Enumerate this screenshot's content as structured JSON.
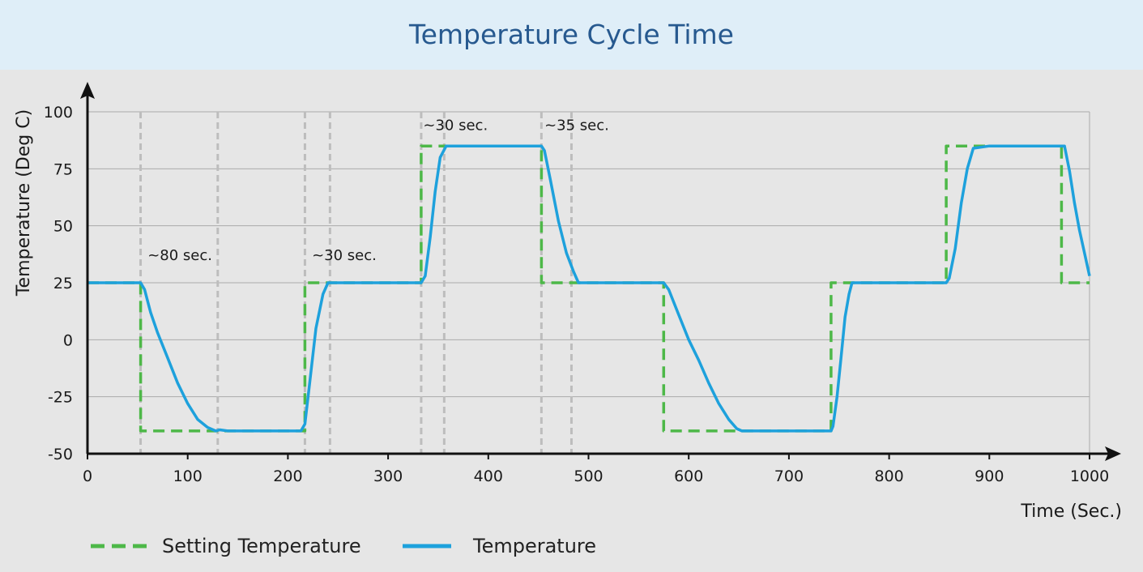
{
  "title": "Temperature Cycle Time",
  "chart_data": {
    "type": "line",
    "xlabel": "Time (Sec.)",
    "ylabel": "Temperature (Deg C)",
    "xlim": [
      0,
      1000
    ],
    "ylim": [
      -50,
      100
    ],
    "xticks": [
      0,
      100,
      200,
      300,
      400,
      500,
      600,
      700,
      800,
      900,
      1000
    ],
    "yticks": [
      -50,
      -25,
      0,
      25,
      50,
      75,
      100
    ],
    "grid": "horizontal",
    "legend_position": "bottom-left",
    "series": [
      {
        "name": "Setting Temperature",
        "style": "dashed",
        "color": "#4db848",
        "x": [
          0,
          53,
          53,
          217,
          217,
          333,
          333,
          453,
          453,
          575,
          575,
          742,
          742,
          857,
          857,
          972,
          972,
          1000
        ],
        "y": [
          25,
          25,
          -40,
          -40,
          25,
          25,
          85,
          85,
          25,
          25,
          -40,
          -40,
          25,
          25,
          85,
          85,
          25,
          25
        ]
      },
      {
        "name": "Temperature",
        "style": "solid",
        "color": "#1ea1dc",
        "x": [
          0,
          53,
          57,
          63,
          70,
          80,
          90,
          100,
          110,
          120,
          128,
          132,
          140,
          170,
          200,
          213,
          217,
          222,
          228,
          235,
          240,
          245,
          260,
          290,
          320,
          333,
          337,
          342,
          347,
          352,
          358,
          380,
          420,
          453,
          456,
          462,
          470,
          478,
          485,
          490,
          500,
          530,
          575,
          580,
          590,
          600,
          610,
          620,
          630,
          640,
          648,
          653,
          680,
          742,
          744,
          748,
          752,
          756,
          760,
          763,
          770,
          800,
          857,
          860,
          866,
          872,
          878,
          884,
          900,
          940,
          972,
          975,
          980,
          985,
          990,
          995,
          1000
        ],
        "y": [
          25,
          25,
          22,
          12,
          3,
          -8,
          -19,
          -28,
          -35,
          -38.5,
          -40,
          -39.5,
          -40,
          -40,
          -40,
          -40,
          -37,
          -18,
          5,
          20,
          25,
          25,
          25,
          25,
          25,
          25,
          28,
          45,
          65,
          80,
          85,
          85,
          85,
          85,
          83,
          70,
          52,
          38,
          30,
          25,
          25,
          25,
          25,
          22,
          11,
          0,
          -9,
          -19,
          -28,
          -35,
          -39,
          -40,
          -40,
          -40,
          -38,
          -25,
          -8,
          10,
          20,
          25,
          25,
          25,
          25,
          27,
          40,
          60,
          75,
          84,
          85,
          85,
          85,
          85,
          74,
          60,
          48,
          38,
          28
        ]
      }
    ],
    "annotations": [
      {
        "text": "~80 sec.",
        "x": 60,
        "y": 35
      },
      {
        "text": "~30 sec.",
        "x": 224,
        "y": 35
      },
      {
        "text": "~30 sec.",
        "x": 335,
        "y": 92
      },
      {
        "text": "~35 sec.",
        "x": 456,
        "y": 92
      }
    ],
    "reference_lines_x": [
      53,
      130,
      217,
      242,
      333,
      356,
      453,
      483
    ]
  },
  "colors": {
    "setting": "#4db848",
    "temperature": "#1ea1dc",
    "reference": "#bdbdbd",
    "grid": "#aaaaaa",
    "axis": "#111111"
  }
}
